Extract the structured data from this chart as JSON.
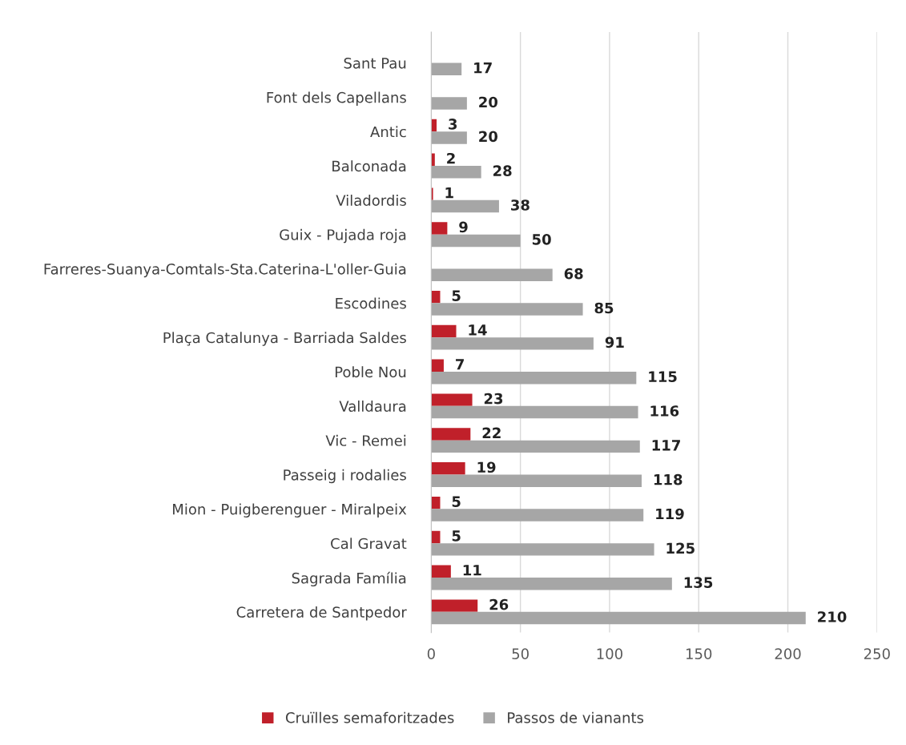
{
  "chart_data": {
    "type": "bar",
    "orientation": "horizontal",
    "categories": [
      "Sant Pau",
      "Font dels Capellans",
      "Antic",
      "Balconada",
      "Viladordis",
      "Guix - Pujada roja",
      "Farreres-Suanya-Comtals-Sta.Caterina-L'oller-Guia",
      "Escodines",
      "Plaça Catalunya - Barriada Saldes",
      "Poble Nou",
      "Valldaura",
      "Vic - Remei",
      "Passeig i rodalies",
      "Mion - Puigberenguer - Miralpeix",
      "Cal Gravat",
      "Sagrada Família",
      "Carretera de Santpedor"
    ],
    "series": [
      {
        "name": "Cruïlles semaforitzades",
        "color": "#c0202a",
        "values": [
          null,
          null,
          3,
          2,
          1,
          9,
          null,
          5,
          14,
          7,
          23,
          22,
          19,
          5,
          5,
          11,
          26
        ]
      },
      {
        "name": "Passos de vianants",
        "color": "#a6a6a6",
        "values": [
          17,
          20,
          20,
          28,
          38,
          50,
          68,
          85,
          91,
          115,
          116,
          117,
          118,
          119,
          125,
          135,
          210
        ]
      }
    ],
    "xlim": [
      0,
      250
    ],
    "xticks": [
      0,
      50,
      100,
      150,
      200,
      250
    ],
    "grid": "x",
    "legend": "bottom",
    "data_labels": true
  }
}
